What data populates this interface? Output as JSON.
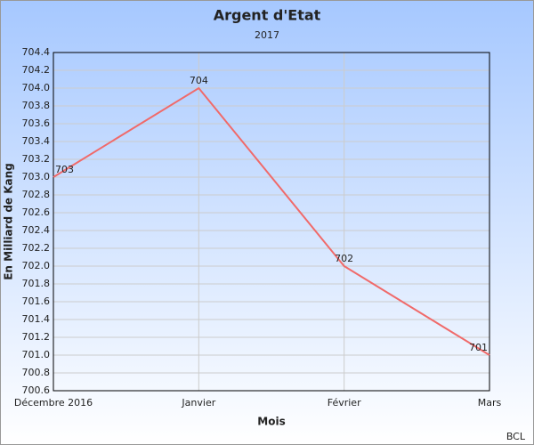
{
  "chart_data": {
    "type": "line",
    "title": "Argent d'Etat",
    "subtitle": "2017",
    "y_label": "En Milliard de Kang",
    "x_label": "Mois",
    "credit": "BCL",
    "categories": [
      "Décembre 2016",
      "Janvier",
      "Février",
      "Mars"
    ],
    "series": [
      {
        "name": "Argent d'Etat",
        "color": "#f06a6a",
        "values": [
          703,
          704,
          702,
          701
        ]
      }
    ],
    "ylim": [
      700.6,
      704.4
    ],
    "yticks": [
      700.6,
      700.8,
      {
        "value": 701,
        "label": "701.0"
      },
      701.2,
      701.4,
      701.6,
      701.8,
      {
        "value": 702,
        "label": "702.0"
      },
      702.2,
      702.4,
      702.6,
      702.8,
      {
        "value": 703,
        "label": "703.0"
      },
      703.2,
      703.4,
      703.6,
      703.8,
      {
        "value": 704,
        "label": "704.0"
      },
      704.2,
      704.4
    ],
    "grid": true
  }
}
